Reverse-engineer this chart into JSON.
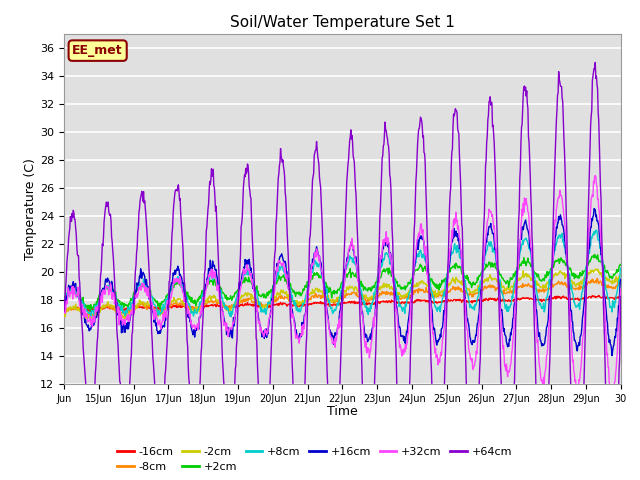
{
  "title": "Soil/Water Temperature Set 1",
  "xlabel": "Time",
  "ylabel": "Temperature (C)",
  "ylim": [
    12,
    37
  ],
  "yticks": [
    12,
    14,
    16,
    18,
    20,
    22,
    24,
    26,
    28,
    30,
    32,
    34,
    36
  ],
  "xlim": [
    0,
    16
  ],
  "xtick_labels": [
    "Jun",
    "15Jun",
    "16Jun",
    "17Jun",
    "18Jun",
    "19Jun",
    "20Jun",
    "21Jun",
    "22Jun",
    "23Jun",
    "24Jun",
    "25Jun",
    "26Jun",
    "27Jun",
    "28Jun",
    "29Jun",
    "30"
  ],
  "annotation_text": "EE_met",
  "annotation_bg": "#ffff99",
  "annotation_border": "#8b0000",
  "bg_color": "#e0e0e0",
  "grid_color": "#ffffff",
  "series": [
    {
      "label": "-16cm",
      "color": "#ff0000"
    },
    {
      "label": "-8cm",
      "color": "#ff8800"
    },
    {
      "label": "-2cm",
      "color": "#cccc00"
    },
    {
      "label": "+2cm",
      "color": "#00cc00"
    },
    {
      "label": "+8cm",
      "color": "#00cccc"
    },
    {
      "label": "+16cm",
      "color": "#0000cc"
    },
    {
      "label": "+32cm",
      "color": "#ff44ff"
    },
    {
      "label": "+64cm",
      "color": "#8800cc"
    }
  ]
}
